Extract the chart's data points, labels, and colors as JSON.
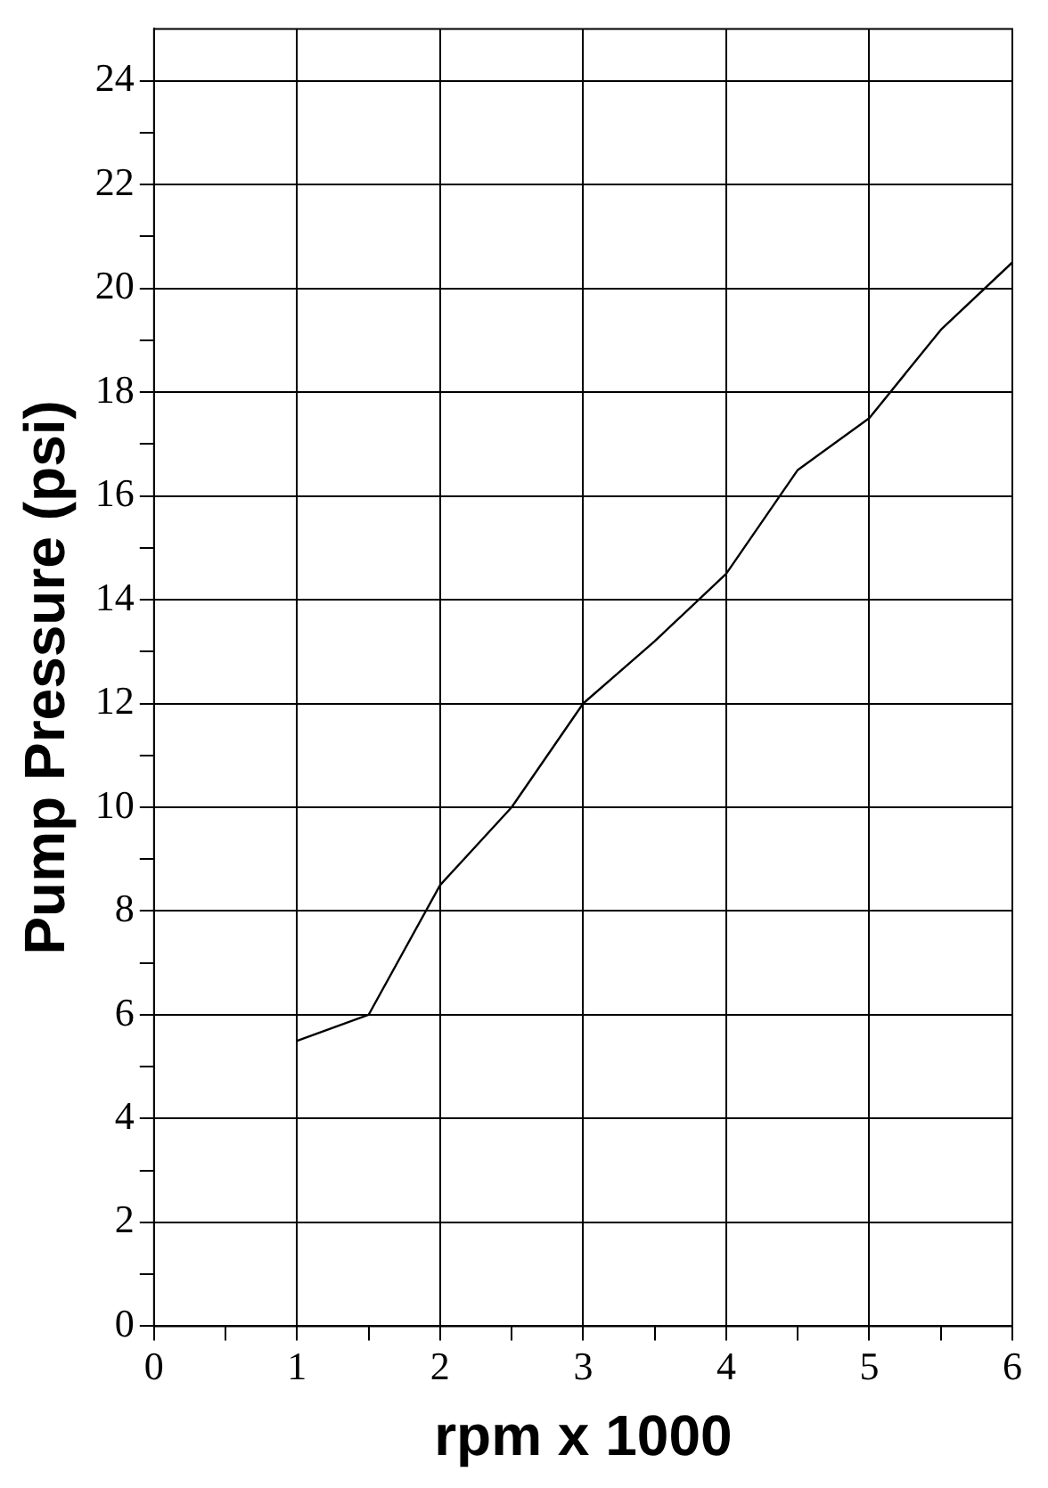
{
  "chart_data": {
    "type": "line",
    "xlabel": "rpm x 1000",
    "ylabel": "Pump Pressure (psi)",
    "x": [
      1,
      1.5,
      2,
      2.5,
      3,
      3.5,
      4,
      4.5,
      5,
      5.5,
      6
    ],
    "series": [
      {
        "color": "#000000",
        "values": [
          5.5,
          6,
          8.5,
          10,
          12,
          13.2,
          14.5,
          16.5,
          17.5,
          19.2,
          20.5
        ]
      }
    ],
    "xlim": [
      0,
      6
    ],
    "xticks": [
      0,
      {
        "value": 0.5,
        "label": null
      },
      1,
      {
        "value": 1.5,
        "label": null
      },
      2,
      {
        "value": 2.5,
        "label": null
      },
      3,
      {
        "value": 3.5,
        "label": null
      },
      4,
      {
        "value": 4.5,
        "label": null
      },
      5,
      {
        "value": 5.5,
        "label": null
      },
      6
    ],
    "ylim": [
      0,
      25
    ],
    "yticks": [
      0,
      {
        "value": 1,
        "label": null
      },
      2,
      {
        "value": 3,
        "label": null
      },
      4,
      {
        "value": 5,
        "label": null
      },
      6,
      {
        "value": 7,
        "label": null
      },
      8,
      {
        "value": 9,
        "label": null
      },
      10,
      {
        "value": 11,
        "label": null
      },
      12,
      {
        "value": 13,
        "label": null
      },
      14,
      {
        "value": 15,
        "label": null
      },
      16,
      {
        "value": 17,
        "label": null
      },
      18,
      {
        "value": 19,
        "label": null
      },
      20,
      {
        "value": 21,
        "label": null
      },
      22,
      {
        "value": 23,
        "label": null
      },
      24
    ],
    "grid": true,
    "legend": false,
    "marker": "none",
    "line_style": "solid"
  }
}
